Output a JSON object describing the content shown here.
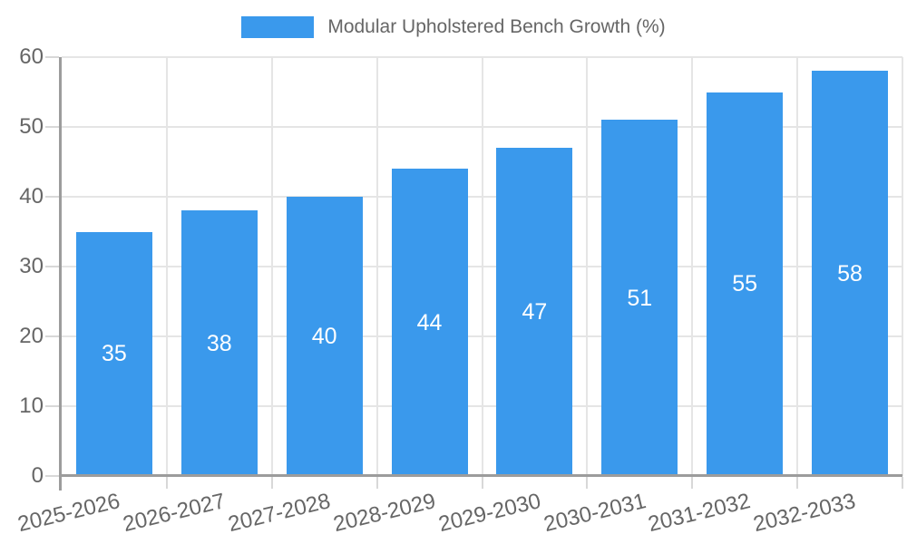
{
  "chart_data": {
    "type": "bar",
    "title": "Modular Upholstered Bench Growth (%)",
    "categories": [
      "2025-2026",
      "2026-2027",
      "2027-2028",
      "2028-2029",
      "2029-2030",
      "2030-2031",
      "2031-2032",
      "2032-2033"
    ],
    "series": [
      {
        "name": "Modular Upholstered Bench Growth (%)",
        "color": "#3A99EC",
        "values": [
          35,
          38,
          40,
          44,
          47,
          51,
          55,
          58
        ]
      }
    ],
    "xlabel": "",
    "ylabel": "",
    "ylim": [
      0,
      60
    ],
    "yticks": [
      0,
      10,
      20,
      30,
      40,
      50,
      60
    ],
    "grid": true,
    "legend_position": "top",
    "value_labels": "inside-center",
    "value_label_color": "#FFFFFF",
    "tick_label_color": "#666666",
    "grid_color": "#E5E5E5",
    "tick_mark_color": "#D8D8D8",
    "axis_color": "#9C9C9C",
    "background": "#FFFFFF",
    "x_tick_rotation_deg": -13.5
  }
}
